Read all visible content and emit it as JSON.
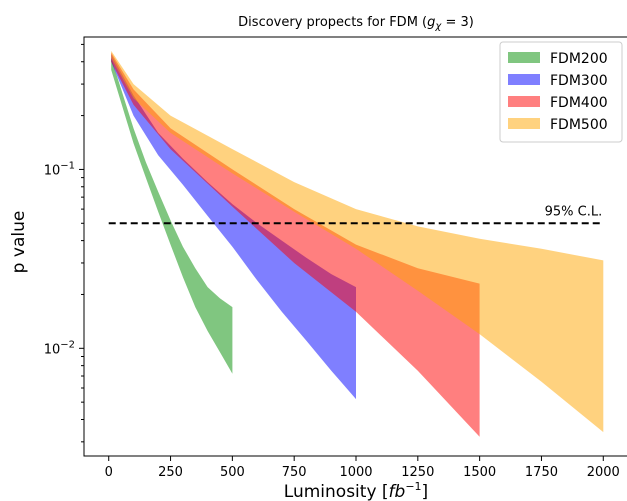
{
  "chart_data": {
    "type": "area",
    "title_prefix": "Discovery propects for FDM (",
    "title_var": "g",
    "title_sub": "χ",
    "title_suffix": " = 3)",
    "xlabel_prefix": "Luminosity [",
    "xlabel_var": "fb",
    "xlabel_sup": "−1",
    "xlabel_suffix": "]",
    "ylabel": "p value",
    "xlim": [
      -100,
      2100
    ],
    "ylim": [
      0.0025,
      0.55
    ],
    "yscale": "log",
    "xticks": [
      0,
      250,
      500,
      750,
      1000,
      1250,
      1500,
      1750,
      2000
    ],
    "xtick_labels": [
      "0",
      "250",
      "500",
      "750",
      "1000",
      "1250",
      "1500",
      "1750",
      "2000"
    ],
    "yticks": [
      {
        "value": 0.1,
        "base": "10",
        "exp": "−1"
      },
      {
        "value": 0.01,
        "base": "10",
        "exp": "−2"
      }
    ],
    "grid": false,
    "legend_position": "top-right",
    "series": [
      {
        "name": "FDM200",
        "color": "#2ca02c",
        "opacity": 0.6,
        "x": [
          10,
          100,
          150,
          200,
          250,
          300,
          350,
          400,
          450,
          500
        ],
        "upper": [
          0.42,
          0.17,
          0.11,
          0.075,
          0.052,
          0.037,
          0.028,
          0.022,
          0.019,
          0.017
        ],
        "lower": [
          0.36,
          0.14,
          0.09,
          0.058,
          0.038,
          0.025,
          0.017,
          0.0125,
          0.0095,
          0.0072
        ]
      },
      {
        "name": "FDM300",
        "color": "#0000ff",
        "opacity": 0.5,
        "x": [
          10,
          100,
          200,
          300,
          400,
          500,
          600,
          700,
          800,
          900,
          1000
        ],
        "upper": [
          0.44,
          0.26,
          0.16,
          0.115,
          0.085,
          0.064,
          0.05,
          0.04,
          0.032,
          0.026,
          0.022
        ],
        "lower": [
          0.4,
          0.2,
          0.12,
          0.082,
          0.055,
          0.037,
          0.024,
          0.016,
          0.011,
          0.0075,
          0.0052
        ]
      },
      {
        "name": "FDM400",
        "color": "#ff0000",
        "opacity": 0.5,
        "x": [
          10,
          100,
          250,
          500,
          750,
          1000,
          1250,
          1500
        ],
        "upper": [
          0.45,
          0.28,
          0.17,
          0.1,
          0.06,
          0.038,
          0.028,
          0.023
        ],
        "lower": [
          0.4,
          0.23,
          0.13,
          0.062,
          0.03,
          0.016,
          0.0075,
          0.0032
        ]
      },
      {
        "name": "FDM500",
        "color": "#ffa500",
        "opacity": 0.5,
        "x": [
          10,
          100,
          250,
          500,
          750,
          1000,
          1250,
          1500,
          1750,
          2000
        ],
        "upper": [
          0.46,
          0.3,
          0.2,
          0.13,
          0.085,
          0.06,
          0.048,
          0.041,
          0.036,
          0.031
        ],
        "lower": [
          0.42,
          0.25,
          0.16,
          0.095,
          0.058,
          0.036,
          0.021,
          0.012,
          0.0065,
          0.0034
        ]
      }
    ],
    "reference_line": {
      "value": 0.05,
      "x_range": [
        0,
        2000
      ],
      "label": "95% C.L.",
      "style": "dashed",
      "color": "#000000"
    }
  }
}
